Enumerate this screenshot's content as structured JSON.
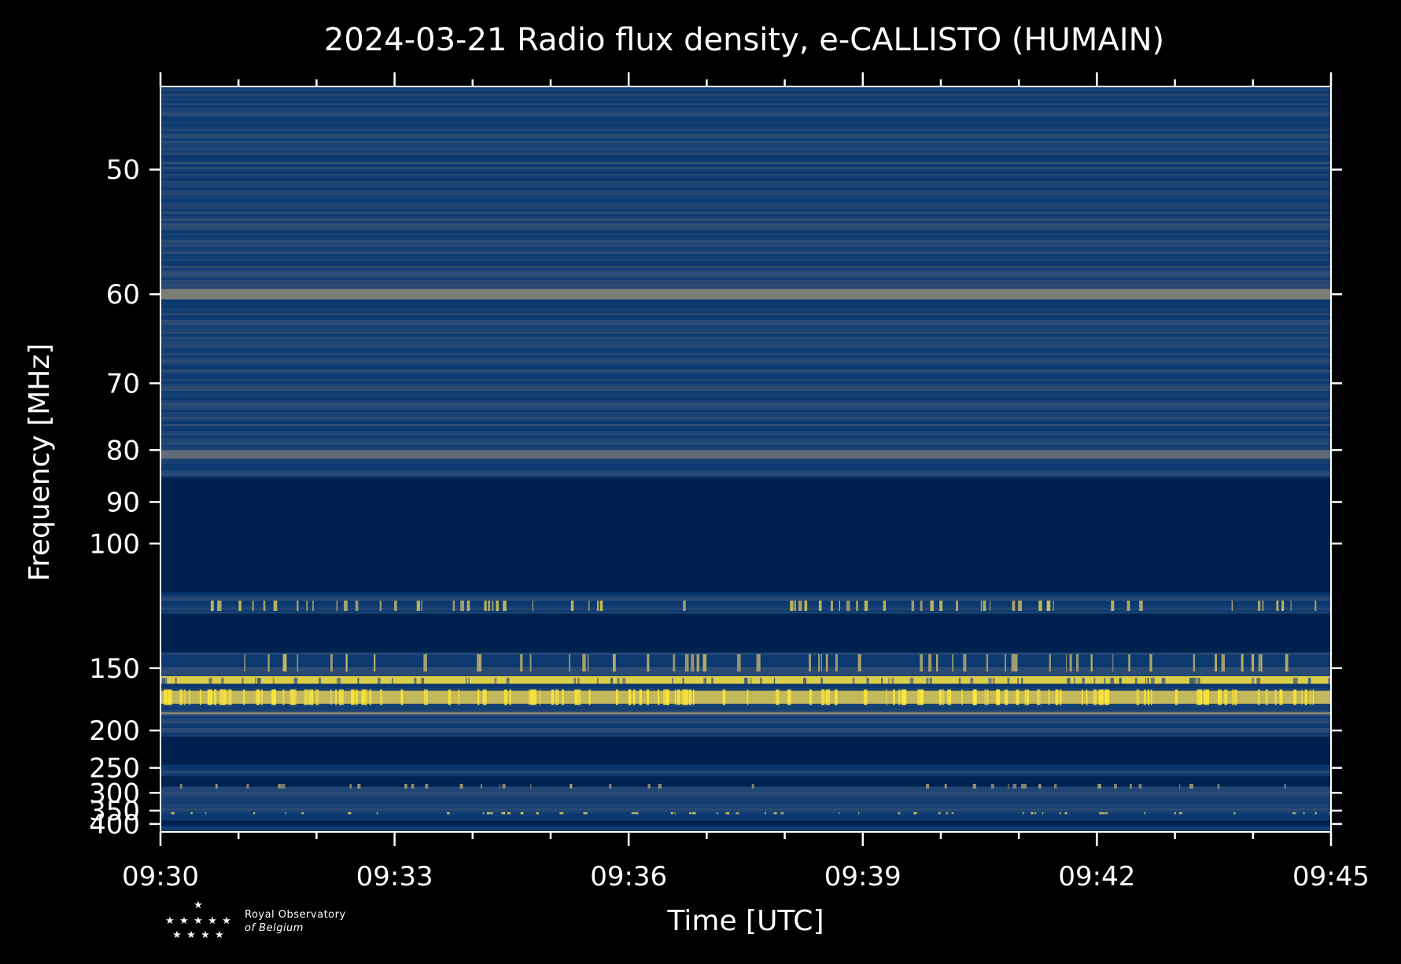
{
  "chart_data": {
    "type": "heatmap",
    "title": "2024-03-21 Radio flux density, e-CALLISTO (HUMAIN)",
    "xlabel": "Time [UTC]",
    "ylabel": "Frequency [MHz]",
    "x_ticks": [
      "09:30",
      "09:33",
      "09:36",
      "09:39",
      "09:42",
      "09:45"
    ],
    "x_range": [
      "09:30",
      "09:45"
    ],
    "y_ticks": [
      50,
      60,
      70,
      80,
      90,
      100,
      150,
      200,
      250,
      300,
      350,
      400
    ],
    "y_range": [
      45,
      437
    ],
    "y_scale": "reciprocal",
    "colormap": "cividis",
    "colors": {
      "background": "#000000",
      "low": "#00224e",
      "mid": "#7a7b78",
      "high": "#fee838",
      "axis": "#ffffff"
    },
    "masked_bands_mhz": [
      [
        85,
        115
      ],
      [
        123,
        141
      ],
      [
        207,
        245
      ],
      [
        265,
        285
      ],
      [
        385,
        405
      ]
    ],
    "bright_bands_mhz": [
      {
        "range": [
          155,
          160
        ],
        "level": 0.95
      },
      {
        "range": [
          165,
          175
        ],
        "level": 0.85
      },
      {
        "range": [
          182,
          184
        ],
        "level": 0.6
      },
      {
        "range": [
          59.5,
          60.5
        ],
        "level": 0.55
      },
      {
        "range": [
          80,
          81.5
        ],
        "level": 0.45
      }
    ],
    "grid": false
  },
  "logo": {
    "line1": "Royal Observatory",
    "line2": "of Belgium"
  }
}
